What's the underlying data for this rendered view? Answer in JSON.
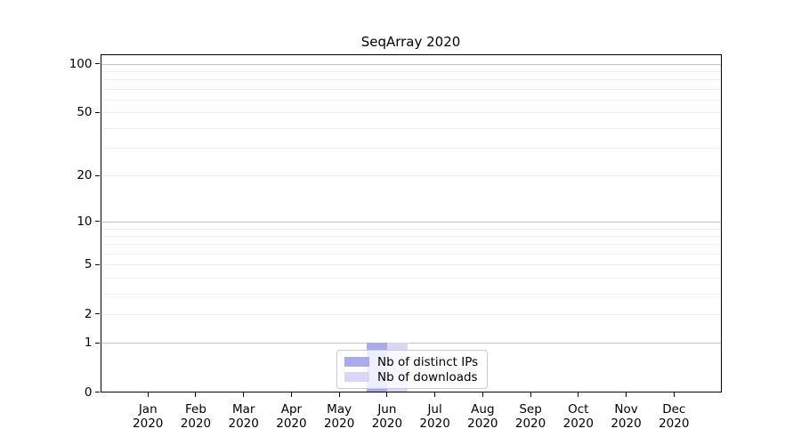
{
  "chart_data": {
    "type": "bar",
    "title": "SeqArray 2020",
    "categories": [
      {
        "month": "Jan",
        "year": "2020"
      },
      {
        "month": "Feb",
        "year": "2020"
      },
      {
        "month": "Mar",
        "year": "2020"
      },
      {
        "month": "Apr",
        "year": "2020"
      },
      {
        "month": "May",
        "year": "2020"
      },
      {
        "month": "Jun",
        "year": "2020"
      },
      {
        "month": "Jul",
        "year": "2020"
      },
      {
        "month": "Aug",
        "year": "2020"
      },
      {
        "month": "Sep",
        "year": "2020"
      },
      {
        "month": "Oct",
        "year": "2020"
      },
      {
        "month": "Nov",
        "year": "2020"
      },
      {
        "month": "Dec",
        "year": "2020"
      }
    ],
    "series": [
      {
        "name": "Nb of distinct IPs",
        "color": "#aaaaee",
        "values": [
          0,
          0,
          0,
          0,
          0,
          1,
          0,
          0,
          0,
          0,
          0,
          0
        ]
      },
      {
        "name": "Nb of downloads",
        "color": "#d8d8f6",
        "values": [
          0,
          0,
          0,
          0,
          0,
          1,
          0,
          0,
          0,
          0,
          0,
          0
        ]
      }
    ],
    "ylabel": "",
    "xlabel": "",
    "yscale": "log10(1+x)",
    "ylim": [
      0,
      114
    ],
    "yticks": [
      0,
      1,
      2,
      5,
      10,
      20,
      50,
      100
    ],
    "major_gridlines": [
      1,
      10,
      100
    ],
    "minor_gridlines": [
      2,
      3,
      4,
      5,
      6,
      7,
      8,
      9,
      20,
      30,
      40,
      50,
      60,
      70,
      80,
      90
    ],
    "grid": true,
    "legend_position": "lower center",
    "colors": {
      "grid_major": "#c4c4c4",
      "grid_minor": "#efefef",
      "axis": "#000000",
      "background": "#ffffff"
    }
  }
}
